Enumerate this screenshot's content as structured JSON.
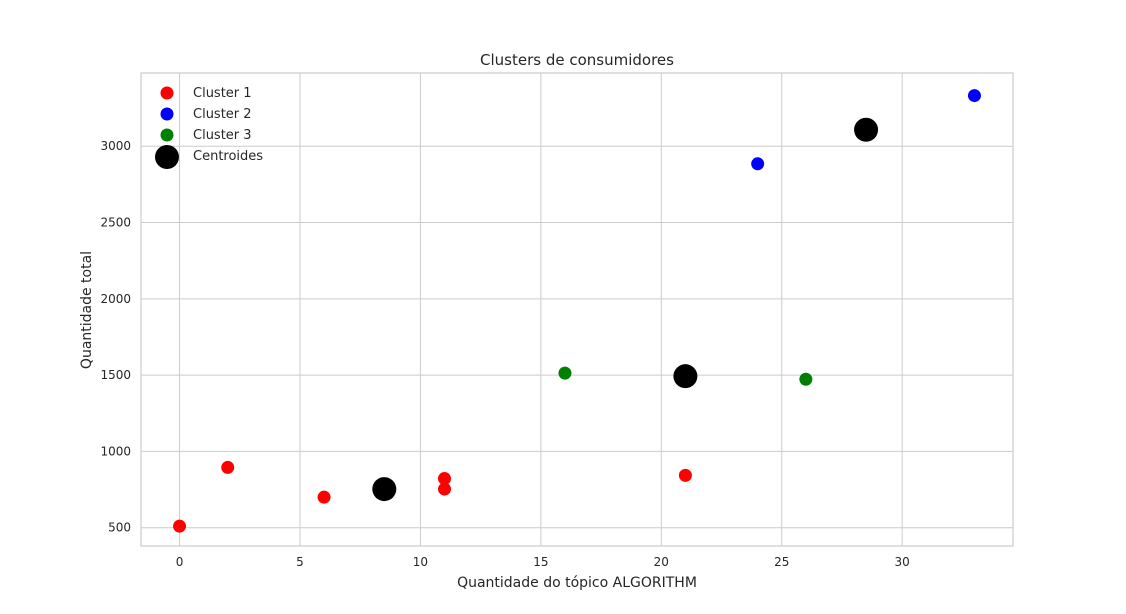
{
  "chart_data": {
    "type": "scatter",
    "title": "Clusters de consumidores",
    "xlabel": "Quantidade do tópico ALGORITHM",
    "ylabel": "Quantidade total",
    "xlim": [
      -1.6,
      34.6
    ],
    "ylim": [
      380,
      3480
    ],
    "xticks": [
      0,
      5,
      10,
      15,
      20,
      25,
      30
    ],
    "yticks": [
      500,
      1000,
      1500,
      2000,
      2500,
      3000
    ],
    "grid": true,
    "legend_position": "top-left",
    "series": [
      {
        "name": "Cluster 1",
        "color": "#ff0000",
        "size": "normal",
        "points": [
          {
            "x": 0,
            "y": 510
          },
          {
            "x": 2,
            "y": 895
          },
          {
            "x": 6,
            "y": 700
          },
          {
            "x": 11,
            "y": 822
          },
          {
            "x": 11,
            "y": 753
          },
          {
            "x": 21,
            "y": 843
          }
        ]
      },
      {
        "name": "Cluster 2",
        "color": "#0000ff",
        "size": "normal",
        "points": [
          {
            "x": 24,
            "y": 2885
          },
          {
            "x": 33,
            "y": 3332
          }
        ]
      },
      {
        "name": "Cluster 3",
        "color": "#008000",
        "size": "normal",
        "points": [
          {
            "x": 16,
            "y": 1513
          },
          {
            "x": 26,
            "y": 1473
          }
        ]
      },
      {
        "name": "Centroides",
        "color": "#000000",
        "size": "large",
        "points": [
          {
            "x": 8.5,
            "y": 753
          },
          {
            "x": 28.5,
            "y": 3108
          },
          {
            "x": 21,
            "y": 1493
          }
        ]
      }
    ]
  }
}
